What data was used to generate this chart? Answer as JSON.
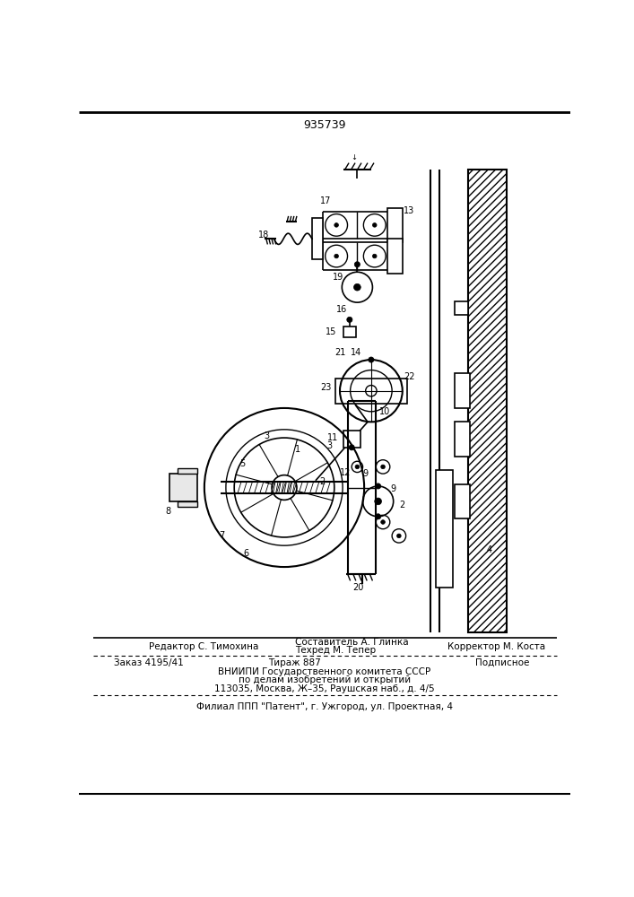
{
  "patent_number": "935739",
  "bg_color": "#ffffff",
  "line_color": "#000000",
  "footer_line1_left": "Редактор С. Тимохина",
  "footer_line1_center_top": "Составитель А. Глинка",
  "footer_line1_center_bot": "Техред М. Тепер",
  "footer_line1_right": "Корректор М. Коста",
  "footer_line2_left": "Заказ 4195/41",
  "footer_line2_center": "Тираж 887",
  "footer_line2_right": "Подписное",
  "footer_line3": "ВНИИПИ Государственного комитета СССР",
  "footer_line4": "по делам изобретений и открытий",
  "footer_line5": "113035, Москва, Ж–35, Раушская наб., д. 4/5",
  "footer_dashed": "Филиал ППП \"Патент\", г. Ужгород, ул. Проектная, 4"
}
